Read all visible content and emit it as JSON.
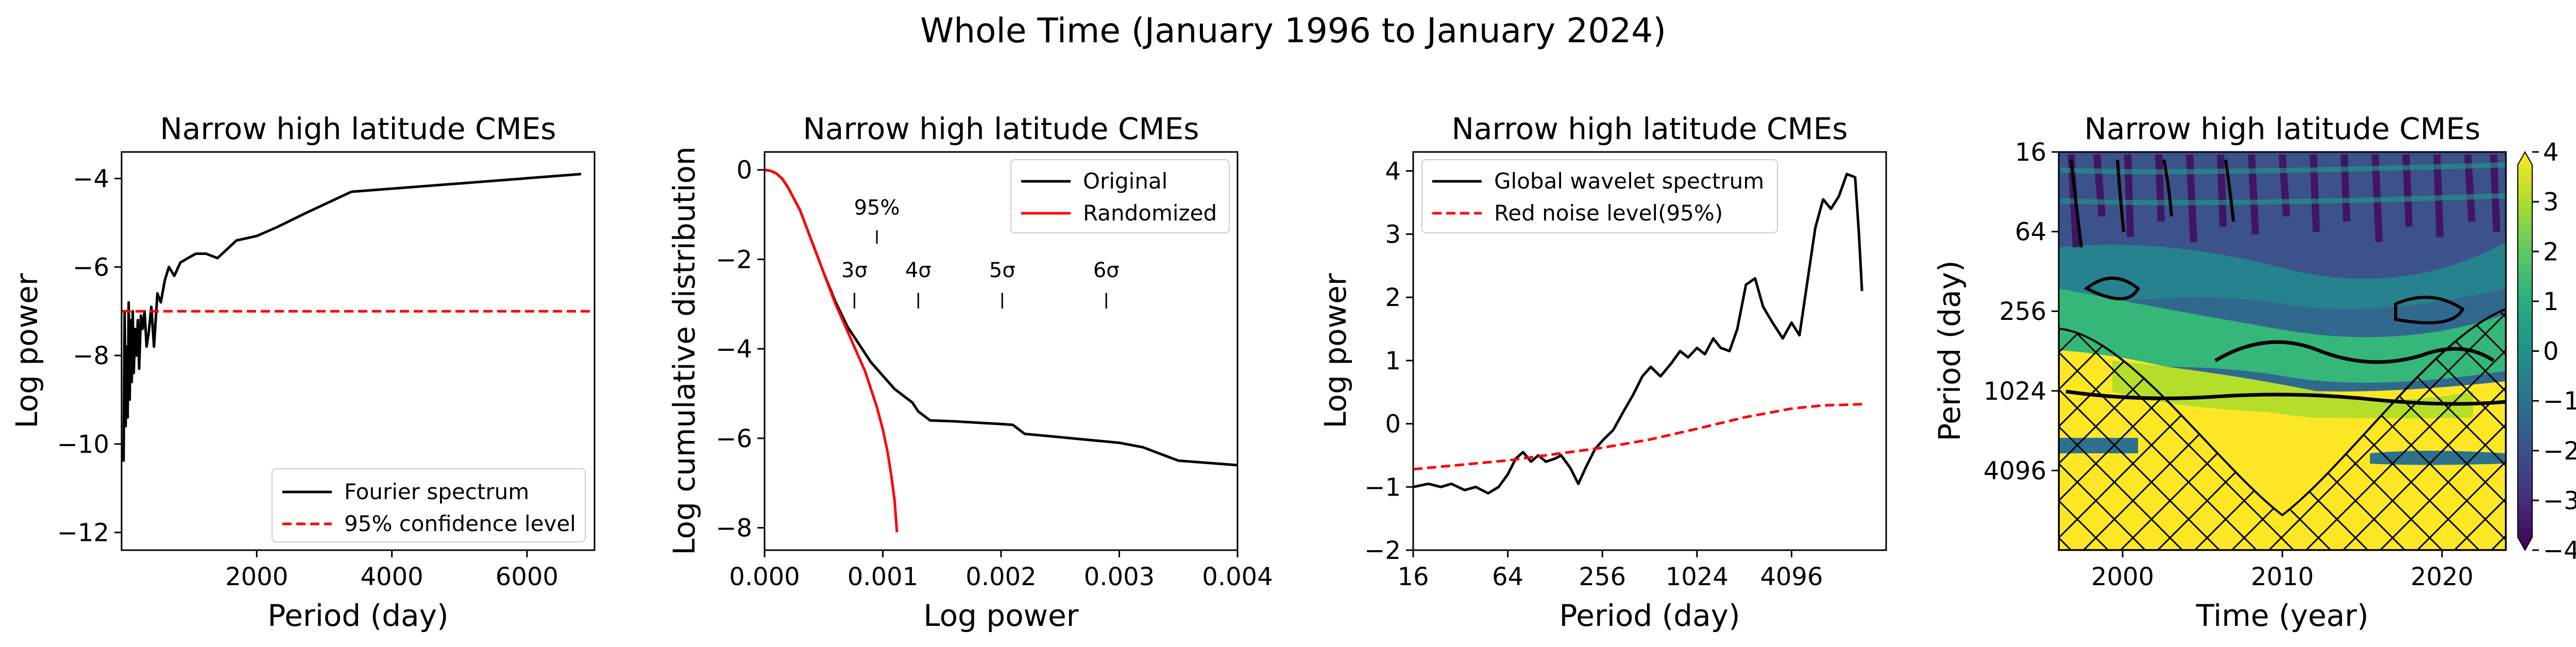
{
  "suptitle": "Whole Time (January 1996 to  January 2024)",
  "colors": {
    "black": "#000000",
    "red": "#ff0000"
  },
  "chart_data": [
    {
      "type": "line",
      "title": "Narrow high latitude CMEs",
      "xlabel": "Period (day)",
      "ylabel": "Log power",
      "xlim": [
        0,
        7000
      ],
      "ylim": [
        -12.4,
        -3.4
      ],
      "xticks": [
        2000,
        4000,
        6000
      ],
      "yticks": [
        -12,
        -10,
        -8,
        -6,
        -4
      ],
      "legend": "lower right",
      "series": [
        {
          "name": "Fourier spectrum",
          "color": "#000000",
          "style": "solid",
          "x": [
            30,
            45,
            60,
            75,
            90,
            105,
            120,
            135,
            150,
            165,
            180,
            200,
            220,
            240,
            260,
            285,
            310,
            340,
            370,
            400,
            440,
            480,
            530,
            580,
            640,
            700,
            780,
            870,
            980,
            1100,
            1250,
            1420,
            1700,
            2000,
            2300,
            2700,
            3400,
            6800
          ],
          "y": [
            -10.4,
            -7.0,
            -9.6,
            -7.8,
            -9.4,
            -6.8,
            -9.0,
            -7.2,
            -8.6,
            -7.0,
            -8.4,
            -7.4,
            -8.0,
            -7.2,
            -8.3,
            -7.1,
            -7.4,
            -7.0,
            -7.8,
            -7.5,
            -6.9,
            -7.8,
            -6.6,
            -6.8,
            -6.3,
            -6.0,
            -6.2,
            -5.9,
            -5.8,
            -5.7,
            -5.7,
            -5.8,
            -5.4,
            -5.3,
            -5.1,
            -4.8,
            -4.3,
            -3.9
          ]
        },
        {
          "name": "95% confidence level",
          "color": "#ff0000",
          "style": "dashed",
          "x": [
            0,
            7000
          ],
          "y": [
            -7.0,
            -7.0
          ]
        }
      ]
    },
    {
      "type": "line",
      "title": "Narrow high latitude CMEs",
      "xlabel": "Log power",
      "ylabel": "Log cumulative distribution",
      "xlim": [
        0,
        0.004
      ],
      "ylim": [
        -8.5,
        0.4
      ],
      "xticks": [
        "0.000",
        "0.001",
        "0.002",
        "0.003",
        "0.004"
      ],
      "yticks": [
        -8,
        -6,
        -4,
        -2,
        0
      ],
      "legend": "upper right",
      "series": [
        {
          "name": "Original",
          "color": "#000000",
          "style": "solid",
          "x": [
            0,
            5e-05,
            0.0001,
            0.00015,
            0.0002,
            0.0003,
            0.0004,
            0.0005,
            0.0006,
            0.0007,
            0.0008,
            0.0009,
            0.001,
            0.0011,
            0.0012,
            0.00125,
            0.0013,
            0.0014,
            0.0016,
            0.0018,
            0.002,
            0.0021,
            0.0022,
            0.0024,
            0.0026,
            0.0028,
            0.003,
            0.0031,
            0.0032,
            0.0033,
            0.0034,
            0.0035,
            0.0036,
            0.0038,
            0.004
          ],
          "y": [
            0,
            -0.02,
            -0.08,
            -0.2,
            -0.4,
            -0.9,
            -1.6,
            -2.3,
            -2.95,
            -3.5,
            -3.9,
            -4.3,
            -4.6,
            -4.9,
            -5.1,
            -5.2,
            -5.4,
            -5.6,
            -5.62,
            -5.65,
            -5.68,
            -5.7,
            -5.9,
            -5.95,
            -6.0,
            -6.05,
            -6.1,
            -6.15,
            -6.2,
            -6.3,
            -6.4,
            -6.5,
            -6.52,
            -6.56,
            -6.6
          ]
        },
        {
          "name": "Randomized",
          "color": "#ff0000",
          "style": "solid",
          "x": [
            0,
            5e-05,
            0.0001,
            0.00015,
            0.0002,
            0.0003,
            0.0004,
            0.0005,
            0.0006,
            0.0007,
            0.0008,
            0.00085,
            0.0009,
            0.00095,
            0.001,
            0.00104,
            0.00107,
            0.0011,
            0.00112
          ],
          "y": [
            0,
            -0.02,
            -0.08,
            -0.2,
            -0.4,
            -0.9,
            -1.6,
            -2.3,
            -3.0,
            -3.6,
            -4.2,
            -4.5,
            -4.9,
            -5.3,
            -5.8,
            -6.3,
            -6.8,
            -7.4,
            -8.1
          ]
        }
      ],
      "annotations": [
        {
          "label": "95%",
          "x": 0.00095,
          "y_text": -1.0,
          "y_top": -1.35,
          "y_bottom": -1.65
        },
        {
          "label": "3σ",
          "x": 0.00076,
          "y_text": -2.4,
          "y_top": -2.75,
          "y_bottom": -3.1
        },
        {
          "label": "4σ",
          "x": 0.0013,
          "y_text": -2.4,
          "y_top": -2.75,
          "y_bottom": -3.1
        },
        {
          "label": "5σ",
          "x": 0.00201,
          "y_text": -2.4,
          "y_top": -2.75,
          "y_bottom": -3.1
        },
        {
          "label": "6σ",
          "x": 0.00289,
          "y_text": -2.4,
          "y_top": -2.75,
          "y_bottom": -3.1
        }
      ]
    },
    {
      "type": "line",
      "title": "Narrow high latitude CMEs",
      "xlabel": "Period (day)",
      "ylabel": "Log power",
      "xscale": "log2",
      "xlim": [
        16,
        16384
      ],
      "ylim": [
        -2,
        4.3
      ],
      "xticks": [
        16,
        64,
        256,
        1024,
        4096
      ],
      "yticks": [
        -2,
        -1,
        0,
        1,
        2,
        3,
        4
      ],
      "legend": "upper left",
      "series": [
        {
          "name": "Global wavelet spectrum",
          "color": "#000000",
          "style": "solid",
          "x": [
            16,
            20,
            24,
            28,
            34,
            40,
            48,
            56,
            64,
            72,
            80,
            90,
            100,
            112,
            128,
            140,
            160,
            180,
            200,
            230,
            260,
            300,
            350,
            400,
            460,
            520,
            600,
            700,
            800,
            900,
            1024,
            1150,
            1300,
            1450,
            1650,
            1850,
            2100,
            2400,
            2700,
            3100,
            3600,
            4096,
            4600,
            5200,
            5800,
            6500,
            7300,
            8200,
            9200,
            10400,
            11000,
            11500
          ],
          "y": [
            -1.0,
            -0.95,
            -1.0,
            -0.95,
            -1.05,
            -1.0,
            -1.1,
            -1.0,
            -0.8,
            -0.55,
            -0.45,
            -0.6,
            -0.5,
            -0.6,
            -0.55,
            -0.5,
            -0.7,
            -0.95,
            -0.7,
            -0.4,
            -0.25,
            -0.1,
            0.2,
            0.45,
            0.75,
            0.9,
            0.75,
            0.95,
            1.15,
            1.05,
            1.2,
            1.1,
            1.35,
            1.2,
            1.15,
            1.5,
            2.2,
            2.3,
            1.85,
            1.6,
            1.35,
            1.6,
            1.4,
            2.3,
            3.1,
            3.55,
            3.4,
            3.6,
            3.95,
            3.9,
            3.0,
            2.1
          ]
        },
        {
          "name": "Red noise level(95%)",
          "color": "#ff0000",
          "style": "dashed",
          "x": [
            16,
            32,
            64,
            128,
            256,
            512,
            1024,
            2048,
            4096,
            6500,
            9000,
            11500
          ],
          "y": [
            -0.72,
            -0.65,
            -0.58,
            -0.48,
            -0.38,
            -0.25,
            -0.08,
            0.1,
            0.24,
            0.29,
            0.3,
            0.31
          ]
        }
      ]
    },
    {
      "type": "heatmap",
      "title": "Narrow high latitude CMEs",
      "xlabel": "Time (year)",
      "ylabel": "Period (day)",
      "xlim": [
        1996,
        2024
      ],
      "xticks": [
        2000,
        2010,
        2020
      ],
      "yscale": "log2",
      "ylim": [
        16,
        16384
      ],
      "yticks": [
        16,
        64,
        256,
        1024,
        4096
      ],
      "colorbar": {
        "range": [
          -4,
          4
        ],
        "ticks": [
          4,
          3,
          2,
          1,
          0,
          -1,
          -2,
          -3,
          -4
        ],
        "tick_labels": [
          "4",
          "3",
          "2",
          "1",
          "0",
          "−1",
          "−2",
          "−3",
          "−4"
        ]
      },
      "colormap": [
        "#440154",
        "#472d7b",
        "#3b528b",
        "#2c728e",
        "#21918c",
        "#28ae80",
        "#5ec962",
        "#addc30",
        "#fde725"
      ]
    }
  ]
}
